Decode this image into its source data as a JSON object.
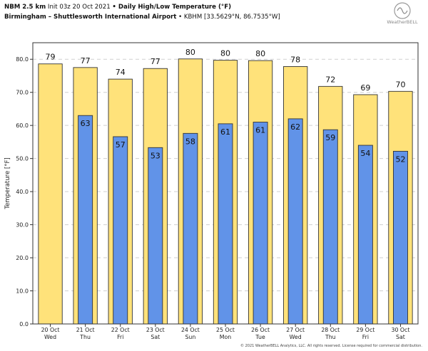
{
  "header": {
    "line1_bold": "NBM 2.5 km",
    "line1_rest": " Init 03z 20 Oct 2021 ",
    "line1_bullet": "•",
    "line1_title": " Daily High/Low Temperature (°F)",
    "line2_bold": "Birmingham – Shuttlesworth International Airport",
    "line2_rest": " • KBHM [33.5629°N, 86.7535°W]"
  },
  "logo_text": "WeatherBELL",
  "copyright": "© 2021 WeatherBELL Analytics, LLC. All rights reserved. License required for commercial distribution.",
  "colors": {
    "high": "#ffe27a",
    "low": "#6193e8",
    "grid": "#cfcfcf"
  },
  "chart_data": {
    "type": "bar",
    "ylabel": "Temperature [°F]",
    "ylim": [
      0,
      85
    ],
    "yticks": [
      "0.0",
      "10.0",
      "20.0",
      "30.0",
      "40.0",
      "50.0",
      "60.0",
      "70.0",
      "80.0"
    ],
    "categories": [
      {
        "date": "20 Oct",
        "day": "Wed"
      },
      {
        "date": "21 Oct",
        "day": "Thu"
      },
      {
        "date": "22 Oct",
        "day": "Fri"
      },
      {
        "date": "23 Oct",
        "day": "Sat"
      },
      {
        "date": "24 Oct",
        "day": "Sun"
      },
      {
        "date": "25 Oct",
        "day": "Mon"
      },
      {
        "date": "26 Oct",
        "day": "Tue"
      },
      {
        "date": "27 Oct",
        "day": "Wed"
      },
      {
        "date": "28 Oct",
        "day": "Thu"
      },
      {
        "date": "29 Oct",
        "day": "Fri"
      },
      {
        "date": "30 Oct",
        "day": "Sat"
      }
    ],
    "series": [
      {
        "values": [
          78.6,
          77.5,
          74.0,
          77.2,
          80.1,
          79.7,
          79.6,
          77.8,
          71.8,
          69.3,
          70.3
        ],
        "labels": [
          "79",
          "77",
          "74",
          "77",
          "80",
          "80",
          "80",
          "78",
          "72",
          "69",
          "70"
        ]
      },
      {
        "values": [
          null,
          63.0,
          56.6,
          53.3,
          57.6,
          60.5,
          61.0,
          62.0,
          58.7,
          54.0,
          52.2
        ],
        "labels": [
          "",
          "63",
          "57",
          "53",
          "58",
          "61",
          "61",
          "62",
          "59",
          "54",
          "52"
        ]
      }
    ]
  }
}
